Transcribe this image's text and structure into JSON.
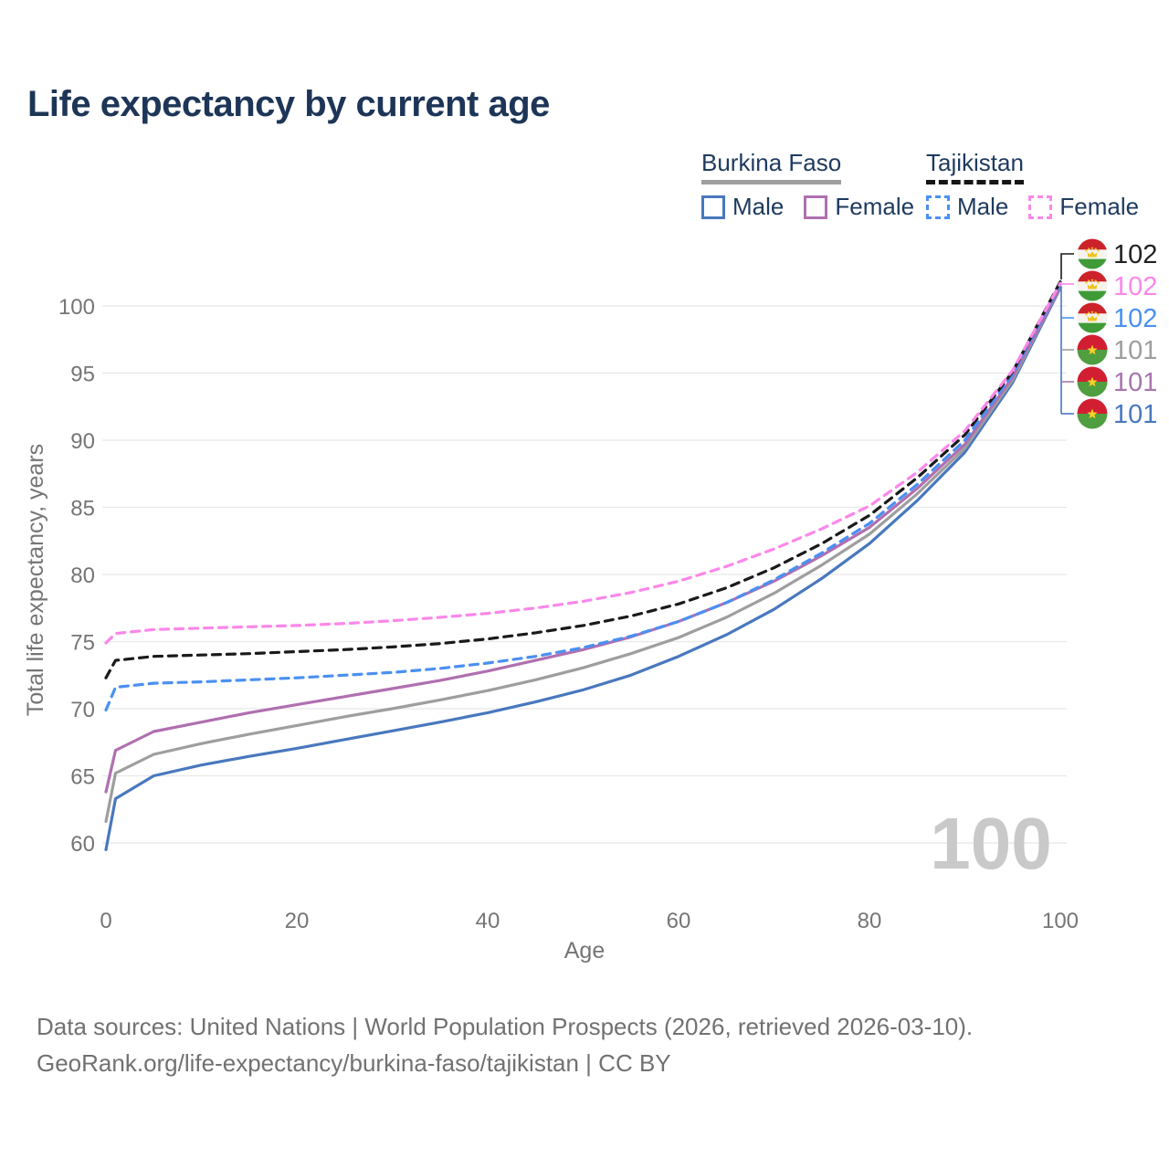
{
  "title": "Life expectancy by current age",
  "legend": {
    "groups": [
      {
        "name": "Burkina Faso",
        "line_style": "solid",
        "underline_color": "#9e9e9e",
        "items": [
          {
            "label": "Male",
            "color": "#4878be",
            "dashed": false
          },
          {
            "label": "Female",
            "color": "#b06fb0",
            "dashed": false
          }
        ]
      },
      {
        "name": "Tajikistan",
        "line_style": "dashed",
        "underline_color": "#161616",
        "items": [
          {
            "label": "Male",
            "color": "#4a90f2",
            "dashed": true
          },
          {
            "label": "Female",
            "color": "#fb87ea",
            "dashed": true
          }
        ]
      }
    ]
  },
  "watermark_age": "100",
  "end_labels": [
    {
      "flag": "tajikistan",
      "text": "102",
      "color": "#212121",
      "leader_color": "#1a1a1a"
    },
    {
      "flag": "tajikistan",
      "text": "102",
      "color": "#fb87ea",
      "leader_color": "#fb87ea"
    },
    {
      "flag": "tajikistan",
      "text": "102",
      "color": "#4a90f2",
      "leader_color": "#4a90f2"
    },
    {
      "flag": "burkina-faso",
      "text": "101",
      "color": "#9e9e9e",
      "leader_color": "#9e9e9e"
    },
    {
      "flag": "burkina-faso",
      "text": "101",
      "color": "#a975ad",
      "leader_color": "#a975ad"
    },
    {
      "flag": "burkina-faso",
      "text": "101",
      "color": "#4878be",
      "leader_color": "#4878be"
    }
  ],
  "footer": {
    "line1": "Data sources: United Nations | World Population Prospects (2026, retrieved 2026-03-10).",
    "line2": "GeoRank.org/life-expectancy/burkina-faso/tajikistan | CC BY"
  },
  "chart_data": {
    "type": "line",
    "title": "Life expectancy by current age",
    "xlabel": "Age",
    "ylabel": "Total life expectancy, years",
    "xlim": [
      0,
      100
    ],
    "ylim": [
      58.5,
      103
    ],
    "xticks": [
      0,
      20,
      40,
      60,
      80,
      100
    ],
    "yticks": [
      60,
      65,
      70,
      75,
      80,
      85,
      90,
      95,
      100
    ],
    "grid": "horizontal",
    "legend_position": "top-right",
    "x": [
      0,
      1,
      5,
      10,
      15,
      20,
      25,
      30,
      35,
      40,
      45,
      50,
      55,
      60,
      65,
      70,
      75,
      80,
      85,
      90,
      95,
      100
    ],
    "series": [
      {
        "id": "burkina-faso-male",
        "country": "Burkina Faso",
        "label": "Male",
        "color": "#4878be",
        "dashed": false,
        "end_value": 101,
        "values": [
          59.5,
          63.3,
          65.0,
          65.8,
          66.45,
          67.05,
          67.7,
          68.35,
          69.0,
          69.7,
          70.5,
          71.4,
          72.5,
          73.9,
          75.5,
          77.4,
          79.7,
          82.3,
          85.5,
          89.1,
          94.3,
          101.35
        ]
      },
      {
        "id": "burkina-faso-total",
        "country": "Burkina Faso",
        "label": "",
        "color": "#9e9e9e",
        "dashed": false,
        "end_value": 101,
        "values": [
          61.6,
          65.2,
          66.6,
          67.4,
          68.1,
          68.75,
          69.4,
          70.0,
          70.65,
          71.35,
          72.15,
          73.05,
          74.1,
          75.3,
          76.8,
          78.6,
          80.7,
          83.0,
          86.0,
          89.4,
          94.5,
          101.45
        ]
      },
      {
        "id": "burkina-faso-female",
        "country": "Burkina Faso",
        "label": "Female",
        "color": "#b06fb0",
        "dashed": false,
        "end_value": 101,
        "values": [
          63.8,
          66.9,
          68.3,
          69.0,
          69.7,
          70.3,
          70.9,
          71.5,
          72.1,
          72.8,
          73.6,
          74.4,
          75.35,
          76.5,
          77.9,
          79.5,
          81.4,
          83.5,
          86.4,
          89.7,
          94.7,
          101.4
        ]
      },
      {
        "id": "tajikistan-male",
        "country": "Tajikistan",
        "label": "Male",
        "color": "#4a90f2",
        "dashed": true,
        "end_value": 102,
        "values": [
          69.9,
          71.6,
          71.9,
          72.0,
          72.15,
          72.3,
          72.5,
          72.7,
          73.0,
          73.4,
          73.9,
          74.55,
          75.4,
          76.5,
          77.9,
          79.6,
          81.6,
          83.8,
          86.7,
          90.0,
          94.9,
          101.65
        ]
      },
      {
        "id": "tajikistan-total",
        "country": "Tajikistan",
        "label": "",
        "color": "#1a1a1a",
        "dashed": true,
        "end_value": 102,
        "values": [
          72.3,
          73.6,
          73.9,
          74.0,
          74.1,
          74.25,
          74.4,
          74.6,
          74.85,
          75.2,
          75.65,
          76.2,
          76.9,
          77.8,
          79.0,
          80.5,
          82.3,
          84.4,
          87.2,
          90.4,
          95.1,
          101.8
        ]
      },
      {
        "id": "tajikistan-female",
        "country": "Tajikistan",
        "label": "Female",
        "color": "#fb87ea",
        "dashed": true,
        "end_value": 102,
        "values": [
          74.9,
          75.6,
          75.9,
          76.0,
          76.1,
          76.2,
          76.35,
          76.55,
          76.8,
          77.1,
          77.5,
          78.0,
          78.65,
          79.5,
          80.6,
          81.9,
          83.4,
          85.1,
          87.6,
          90.7,
          95.2,
          101.7
        ]
      }
    ]
  }
}
